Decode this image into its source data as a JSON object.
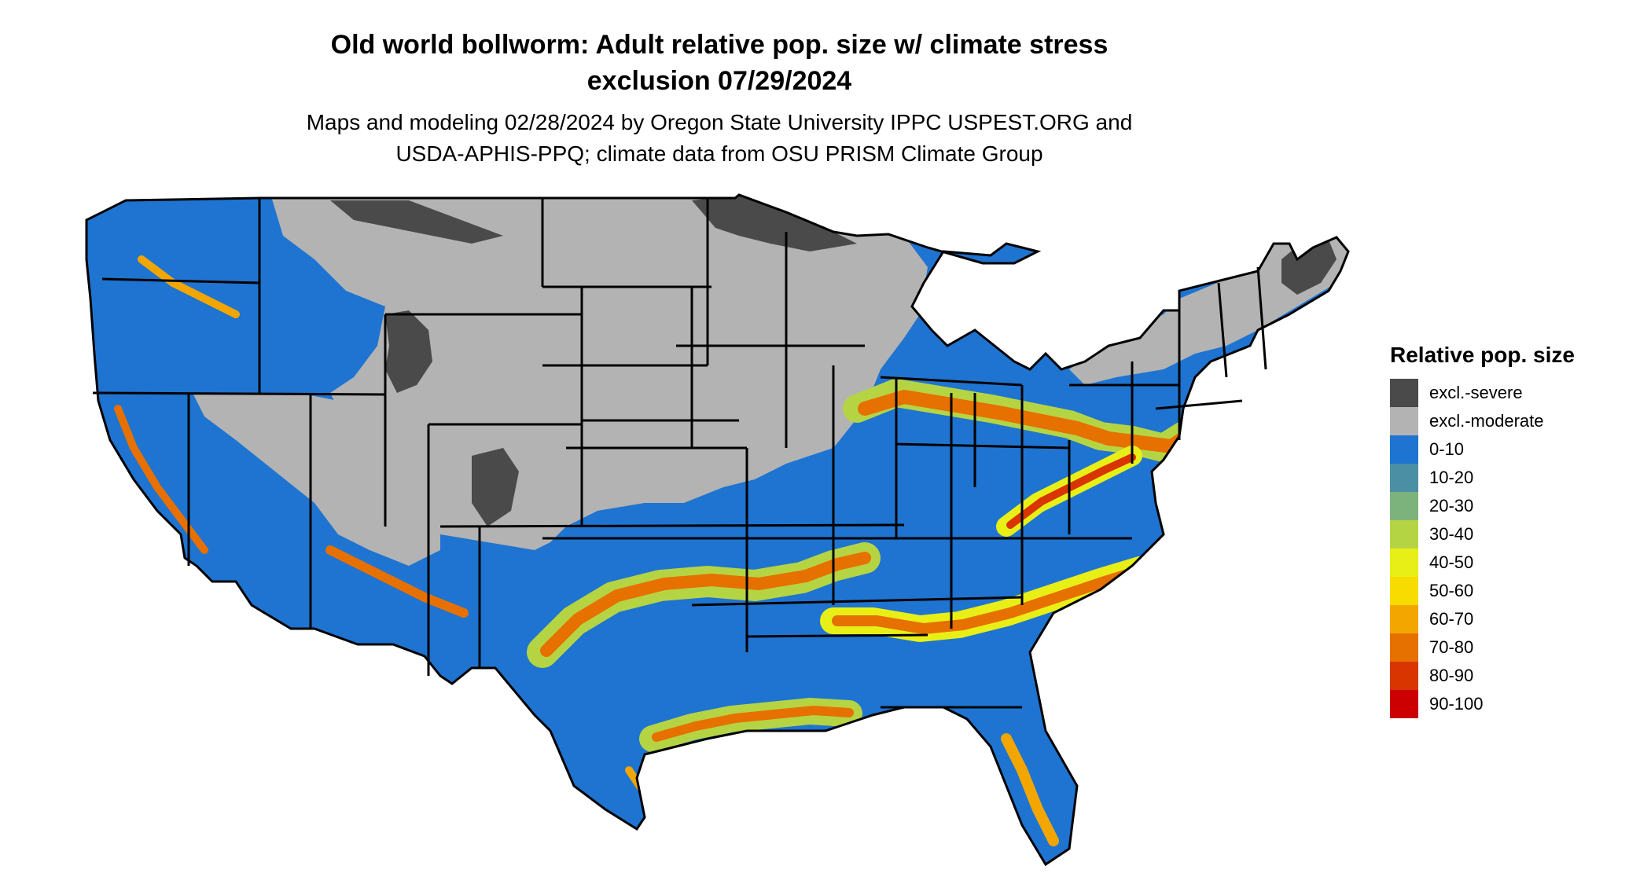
{
  "title": {
    "line1": "Old world bollworm: Adult relative pop. size w/ climate stress",
    "line2": "exclusion 07/29/2024"
  },
  "subtitle": {
    "line1": "Maps and modeling 02/28/2024 by Oregon State University IPPC USPEST.ORG and",
    "line2": "USDA-APHIS-PPQ; climate data from OSU PRISM Climate Group"
  },
  "legend": {
    "title": "Relative pop. size",
    "items": [
      {
        "label": "excl.-severe",
        "color": "#4a4a4a"
      },
      {
        "label": "excl.-moderate",
        "color": "#b3b3b3"
      },
      {
        "label": "0-10",
        "color": "#1e74d0"
      },
      {
        "label": "10-20",
        "color": "#4a8fa4"
      },
      {
        "label": "20-30",
        "color": "#7cb37c"
      },
      {
        "label": "30-40",
        "color": "#b5d444"
      },
      {
        "label": "40-50",
        "color": "#e8ef17"
      },
      {
        "label": "50-60",
        "color": "#f8dc00"
      },
      {
        "label": "60-70",
        "color": "#f3a600"
      },
      {
        "label": "70-80",
        "color": "#e67000"
      },
      {
        "label": "80-90",
        "color": "#d93500"
      },
      {
        "label": "90-100",
        "color": "#cc0000"
      }
    ]
  },
  "map": {
    "region": "Contiguous United States"
  }
}
